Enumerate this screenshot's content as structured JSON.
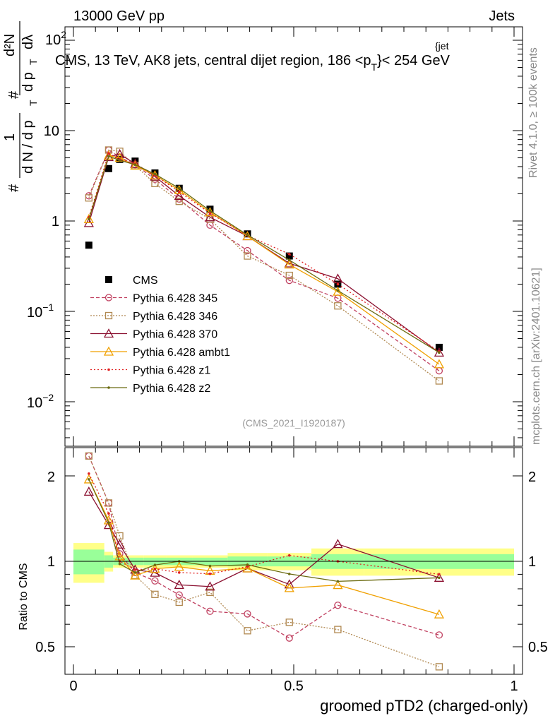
{
  "header": {
    "left": "13000 GeV pp",
    "right": "Jets"
  },
  "side_labels": {
    "rivet": "Rivet 4.1.0, ≥ 100k events",
    "mcplots": "mcplots.cern.ch [arXiv:2401.10621]"
  },
  "upper": {
    "title": "CMS, 13 TeV, AK8 jets, central dijet region, 186 <p",
    "title_sup": "{jet",
    "title_sub": "T",
    "title_end": "}< 254 GeV",
    "ylabel": "#1/dN/dp_T #d²N/dp_T dλ",
    "ylabel_main": "1",
    "ylabel_den": "d N / d p",
    "ylabel_num": "d²N",
    "ylabel_num2": "d p",
    "ylabel_dl": "dλ",
    "ylabel_hash": "#",
    "ylabel_sub": "T",
    "analysis_tag": "(CMS_2021_I1920187)",
    "ticks": [
      {
        "base": "10",
        "exp": "2"
      },
      {
        "base": "10",
        "exp": ""
      },
      {
        "base": "1",
        "exp": ""
      },
      {
        "base": "10",
        "exp": "−1"
      },
      {
        "base": "10",
        "exp": "−2"
      }
    ]
  },
  "lower": {
    "ylabel": "Ratio to CMS",
    "ticks": [
      "2",
      "1",
      "0.5"
    ]
  },
  "xaxis": {
    "label": "groomed pTD2 (charged-only)",
    "ticks": [
      "0",
      "0.5",
      "1"
    ]
  },
  "legend": [
    {
      "label": "CMS",
      "color": "#000000",
      "marker": "square-filled"
    },
    {
      "label": "Pythia 6.428 345",
      "color": "#c04060",
      "marker": "circle-open"
    },
    {
      "label": "Pythia 6.428 346",
      "color": "#b08850",
      "marker": "square-open"
    },
    {
      "label": "Pythia 6.428 370",
      "color": "#8b1030",
      "marker": "triangle-open"
    },
    {
      "label": "Pythia 6.428 ambt1",
      "color": "#f0a000",
      "marker": "triangle-open"
    },
    {
      "label": "Pythia 6.428 z1",
      "color": "#e02020",
      "marker": "dot"
    },
    {
      "label": "Pythia 6.428 z2",
      "color": "#6b6b10",
      "marker": "dot"
    }
  ],
  "chart_data": {
    "type": "line",
    "title": "CMS, 13 TeV, AK8 jets, central dijet region, 186 < pT jet < 254 GeV",
    "xlabel": "groomed pTD2 (charged-only)",
    "ylabel": "1/dN/dpT d2N/dpT dlambda",
    "xlim": [
      0,
      1
    ],
    "ylim": [
      0.003,
      150
    ],
    "yscale": "log",
    "ratio_ylim": [
      0.38,
      2.3
    ],
    "x": [
      0.035,
      0.08,
      0.105,
      0.14,
      0.185,
      0.24,
      0.31,
      0.395,
      0.49,
      0.6,
      0.83
    ],
    "bin_edges": [
      0,
      0.07,
      0.09,
      0.12,
      0.16,
      0.21,
      0.27,
      0.35,
      0.44,
      0.54,
      0.66,
      1.0
    ],
    "band_inner": [
      0.1,
      0.05,
      0.03,
      0.03,
      0.03,
      0.03,
      0.03,
      0.04,
      0.04,
      0.06,
      0.06
    ],
    "band_outer": [
      0.16,
      0.08,
      0.05,
      0.05,
      0.05,
      0.05,
      0.05,
      0.07,
      0.07,
      0.11,
      0.11
    ],
    "series": [
      {
        "name": "CMS",
        "values": [
          0.54,
          3.8,
          4.8,
          4.6,
          3.4,
          2.3,
          1.35,
          0.72,
          0.41,
          0.2,
          0.04
        ]
      },
      {
        "name": "Pythia 6.428 345",
        "values": [
          1.9,
          6.1,
          5.1,
          4.2,
          2.9,
          1.75,
          0.9,
          0.47,
          0.22,
          0.14,
          0.022
        ]
      },
      {
        "name": "Pythia 6.428 346",
        "values": [
          1.8,
          6.1,
          5.9,
          4.1,
          2.6,
          1.65,
          1.05,
          0.41,
          0.25,
          0.115,
          0.017
        ]
      },
      {
        "name": "Pythia 6.428 370",
        "values": [
          0.95,
          5.1,
          5.5,
          4.3,
          3.1,
          1.9,
          1.1,
          0.68,
          0.34,
          0.23,
          0.035
        ]
      },
      {
        "name": "Pythia 6.428 ambt1",
        "values": [
          1.05,
          5.3,
          5.0,
          4.1,
          3.2,
          2.2,
          1.25,
          0.68,
          0.33,
          0.165,
          0.026
        ]
      },
      {
        "name": "Pythia 6.428 z1",
        "values": [
          1.1,
          5.6,
          4.8,
          4.3,
          3.2,
          2.1,
          1.22,
          0.69,
          0.43,
          0.2,
          0.036
        ]
      },
      {
        "name": "Pythia 6.428 z2",
        "values": [
          1.05,
          5.2,
          4.7,
          4.2,
          3.3,
          2.3,
          1.3,
          0.7,
          0.37,
          0.17,
          0.035
        ]
      }
    ]
  }
}
